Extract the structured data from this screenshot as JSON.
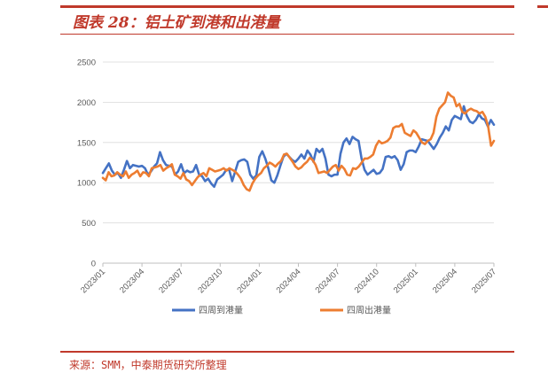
{
  "figure": {
    "title": "图表 28：铝土矿到港和出港量",
    "source": "来源：SMM，中泰期货研究所整理"
  },
  "colors": {
    "accent": "#c0392b",
    "series_arrival": "#4472c4",
    "series_departure": "#ed7d31",
    "axis": "#bfbfbf",
    "grid": "#d9d9d9"
  },
  "chart_data": {
    "type": "line",
    "title": "",
    "xlabel": "",
    "ylabel": "",
    "ylim": [
      0,
      2500
    ],
    "yticks": [
      0,
      500,
      1000,
      1500,
      2000,
      2500
    ],
    "grid": true,
    "legend_position": "bottom",
    "x_tick_labels": [
      "2023/01",
      "2023/04",
      "2023/07",
      "2023/10",
      "2024/01",
      "2024/04",
      "2024/07",
      "2024/10",
      "2025/01",
      "2025/04",
      "2025/07"
    ],
    "series": [
      {
        "name": "四周到港量",
        "values": [
          1120,
          1180,
          1240,
          1150,
          1100,
          1120,
          1060,
          1160,
          1270,
          1180,
          1220,
          1210,
          1200,
          1210,
          1180,
          1100,
          1140,
          1200,
          1240,
          1380,
          1280,
          1220,
          1210,
          1200,
          1100,
          1140,
          1230,
          1120,
          1150,
          1130,
          1140,
          1220,
          1100,
          1080,
          1020,
          1050,
          990,
          950,
          1040,
          1070,
          1100,
          1160,
          1160,
          1020,
          1140,
          1260,
          1280,
          1290,
          1260,
          1100,
          1050,
          1090,
          1320,
          1390,
          1300,
          1180,
          1030,
          1000,
          1090,
          1210,
          1320,
          1360,
          1320,
          1280,
          1260,
          1300,
          1350,
          1300,
          1400,
          1350,
          1260,
          1420,
          1380,
          1420,
          1300,
          1100,
          1080,
          1100,
          1100,
          1360,
          1500,
          1550,
          1480,
          1570,
          1540,
          1520,
          1300,
          1160,
          1100,
          1130,
          1160,
          1110,
          1120,
          1170,
          1320,
          1330,
          1310,
          1330,
          1280,
          1160,
          1230,
          1380,
          1400,
          1400,
          1380,
          1450,
          1540,
          1530,
          1520,
          1470,
          1420,
          1480,
          1560,
          1620,
          1700,
          1650,
          1780,
          1830,
          1810,
          1790,
          1950,
          1830,
          1760,
          1740,
          1780,
          1850,
          1800,
          1780,
          1700,
          1780,
          1720
        ]
      },
      {
        "name": "四周出港量",
        "values": [
          1060,
          1030,
          1130,
          1080,
          1090,
          1130,
          1100,
          1080,
          1140,
          1060,
          1100,
          1120,
          1150,
          1080,
          1130,
          1120,
          1080,
          1180,
          1190,
          1200,
          1220,
          1150,
          1180,
          1200,
          1230,
          1100,
          1080,
          1050,
          1120,
          1040,
          1020,
          970,
          1020,
          1070,
          1100,
          1120,
          1080,
          1180,
          1160,
          1140,
          1150,
          1160,
          1180,
          1150,
          1180,
          1160,
          1140,
          1100,
          1050,
          970,
          920,
          900,
          990,
          1050,
          1090,
          1120,
          1180,
          1210,
          1250,
          1230,
          1200,
          1240,
          1270,
          1350,
          1360,
          1310,
          1260,
          1200,
          1170,
          1190,
          1230,
          1260,
          1310,
          1280,
          1220,
          1120,
          1130,
          1140,
          1120,
          1160,
          1200,
          1220,
          1150,
          1210,
          1170,
          1100,
          1090,
          1180,
          1170,
          1200,
          1250,
          1300,
          1300,
          1320,
          1350,
          1460,
          1520,
          1490,
          1500,
          1520,
          1560,
          1680,
          1700,
          1700,
          1730,
          1620,
          1600,
          1580,
          1650,
          1620,
          1560,
          1500,
          1480,
          1520,
          1540,
          1620,
          1820,
          1920,
          1960,
          2000,
          2120,
          2080,
          2060,
          1950,
          1980,
          1880,
          1860,
          1900,
          1920,
          1900,
          1890,
          1860,
          1880,
          1820,
          1700,
          1460,
          1520
        ]
      }
    ]
  }
}
